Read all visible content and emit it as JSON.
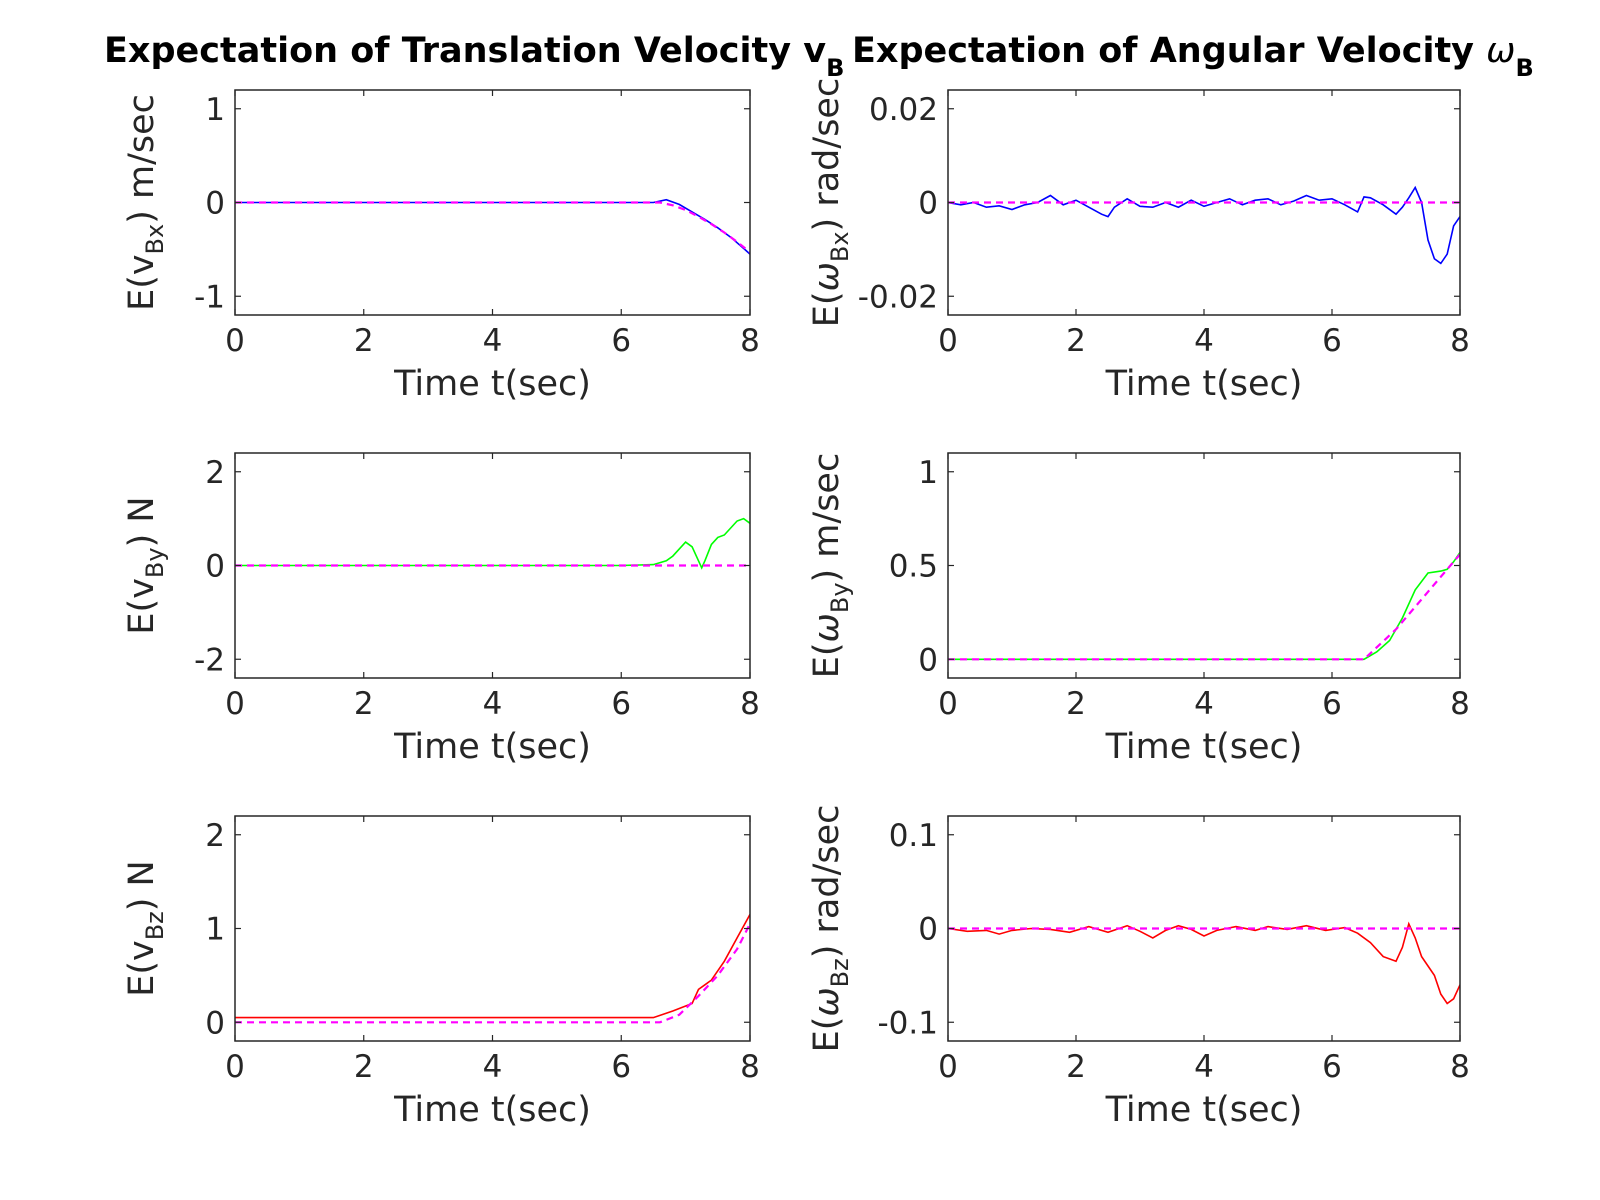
{
  "titles": {
    "left": {
      "main": "Expectation of Translation Velocity v",
      "sub": "B"
    },
    "right": {
      "main": "Expectation of Angular Velocity ",
      "greek": "ω",
      "sub": "B"
    }
  },
  "chart_data": [
    {
      "type": "line",
      "xlabel": "Time t(sec)",
      "ylabel": {
        "pre": "E(v",
        "sub": "Bx",
        "post": ") m/sec"
      },
      "xlim": [
        0,
        8
      ],
      "ylim": [
        -1.2,
        1.2
      ],
      "xticks": [
        "0",
        "2",
        "4",
        "6",
        "8"
      ],
      "xtick_values": [
        0,
        2,
        4,
        6,
        8
      ],
      "yticks": [
        "-1",
        "0",
        "1"
      ],
      "ytick_values": [
        -1,
        0,
        1
      ],
      "grid": false,
      "series": [
        {
          "color": "#0000ff",
          "dashed": false,
          "x": [
            0,
            1,
            2,
            3,
            4,
            5,
            6,
            6.5,
            6.7,
            6.9,
            7.1,
            7.3,
            7.5,
            7.7,
            7.9,
            8
          ],
          "y": [
            0,
            0,
            0,
            0,
            0,
            0,
            0,
            0,
            0.03,
            -0.02,
            -0.1,
            -0.18,
            -0.27,
            -0.37,
            -0.49,
            -0.55
          ]
        },
        {
          "color": "#ff00ff",
          "dashed": true,
          "x": [
            0,
            1,
            2,
            3,
            4,
            5,
            6,
            6.6,
            6.8,
            7,
            7.2,
            7.4,
            7.6,
            7.8,
            8
          ],
          "y": [
            0,
            0,
            0,
            0,
            0,
            0,
            0,
            0,
            -0.03,
            -0.08,
            -0.15,
            -0.23,
            -0.32,
            -0.42,
            -0.53
          ]
        }
      ]
    },
    {
      "type": "line",
      "xlabel": "Time t(sec)",
      "ylabel": {
        "pre": "E(",
        "greek": "ω",
        "sub": "Bx",
        "post": ") rad/sec"
      },
      "xlim": [
        0,
        8
      ],
      "ylim": [
        -0.024,
        0.024
      ],
      "xticks": [
        "0",
        "2",
        "4",
        "6",
        "8"
      ],
      "xtick_values": [
        0,
        2,
        4,
        6,
        8
      ],
      "yticks": [
        "-0.02",
        "0",
        "0.02"
      ],
      "ytick_values": [
        -0.02,
        0,
        0.02
      ],
      "grid": false,
      "series": [
        {
          "color": "#0000ff",
          "dashed": false,
          "x": [
            0,
            0.2,
            0.4,
            0.6,
            0.8,
            1.0,
            1.2,
            1.4,
            1.6,
            1.8,
            2.0,
            2.2,
            2.4,
            2.5,
            2.6,
            2.8,
            3.0,
            3.2,
            3.4,
            3.6,
            3.8,
            4.0,
            4.2,
            4.4,
            4.6,
            4.8,
            5.0,
            5.2,
            5.4,
            5.6,
            5.8,
            6.0,
            6.2,
            6.4,
            6.5,
            6.6,
            6.8,
            7.0,
            7.1,
            7.2,
            7.3,
            7.4,
            7.5,
            7.6,
            7.7,
            7.8,
            7.9,
            8.0
          ],
          "y": [
            0,
            -0.0005,
            0,
            -0.001,
            -0.0007,
            -0.0015,
            -0.0005,
            0,
            0.0015,
            -0.0005,
            0.0005,
            -0.001,
            -0.0025,
            -0.003,
            -0.001,
            0.0008,
            -0.0008,
            -0.001,
            0,
            -0.001,
            0.0005,
            -0.0008,
            0,
            0.0008,
            -0.0005,
            0.0005,
            0.0008,
            -0.0005,
            0.0003,
            0.0015,
            0.0005,
            0.0008,
            -0.0005,
            -0.002,
            0.0012,
            0.001,
            -0.0005,
            -0.0025,
            -0.001,
            0.001,
            0.0032,
            0,
            -0.008,
            -0.012,
            -0.013,
            -0.011,
            -0.005,
            -0.003
          ]
        },
        {
          "color": "#ff00ff",
          "dashed": true,
          "x": [
            0,
            8
          ],
          "y": [
            0,
            0
          ]
        }
      ]
    },
    {
      "type": "line",
      "xlabel": "Time t(sec)",
      "ylabel": {
        "pre": "E(v",
        "sub": "By",
        "post": ") N"
      },
      "xlim": [
        0,
        8
      ],
      "ylim": [
        -2.4,
        2.4
      ],
      "xticks": [
        "0",
        "2",
        "4",
        "6",
        "8"
      ],
      "xtick_values": [
        0,
        2,
        4,
        6,
        8
      ],
      "yticks": [
        "-2",
        "0",
        "2"
      ],
      "ytick_values": [
        -2,
        0,
        2
      ],
      "grid": false,
      "series": [
        {
          "color": "#00ff00",
          "dashed": false,
          "x": [
            0,
            1,
            2,
            3,
            4,
            5,
            6,
            6.5,
            6.7,
            6.8,
            6.9,
            7.0,
            7.1,
            7.2,
            7.25,
            7.3,
            7.4,
            7.5,
            7.6,
            7.7,
            7.8,
            7.9,
            8.0
          ],
          "y": [
            0,
            0,
            0,
            0,
            0,
            0,
            0,
            0.02,
            0.1,
            0.2,
            0.35,
            0.5,
            0.4,
            0.1,
            -0.05,
            0.1,
            0.45,
            0.6,
            0.65,
            0.8,
            0.95,
            1.0,
            0.9
          ]
        },
        {
          "color": "#ff00ff",
          "dashed": true,
          "x": [
            0,
            8
          ],
          "y": [
            0,
            0
          ]
        }
      ]
    },
    {
      "type": "line",
      "xlabel": "Time t(sec)",
      "ylabel": {
        "pre": "E(",
        "greek": "ω",
        "sub": "By",
        "post": ") m/sec"
      },
      "xlim": [
        0,
        8
      ],
      "ylim": [
        -0.1,
        1.1
      ],
      "xticks": [
        "0",
        "2",
        "4",
        "6",
        "8"
      ],
      "xtick_values": [
        0,
        2,
        4,
        6,
        8
      ],
      "yticks": [
        "0",
        "0.5",
        "1"
      ],
      "ytick_values": [
        0,
        0.5,
        1
      ],
      "grid": false,
      "series": [
        {
          "color": "#00ff00",
          "dashed": false,
          "x": [
            0,
            1,
            2,
            3,
            4,
            5,
            6,
            6.5,
            6.7,
            6.9,
            7.1,
            7.3,
            7.5,
            7.7,
            7.8,
            7.9,
            8.0
          ],
          "y": [
            0,
            0,
            0,
            0,
            0,
            0,
            0,
            0,
            0.04,
            0.1,
            0.22,
            0.37,
            0.46,
            0.47,
            0.48,
            0.52,
            0.57
          ]
        },
        {
          "color": "#ff00ff",
          "dashed": true,
          "x": [
            0,
            1,
            2,
            3,
            4,
            5,
            6,
            6.5,
            7,
            7.5,
            8
          ],
          "y": [
            0,
            0,
            0,
            0,
            0,
            0,
            0,
            0,
            0.16,
            0.36,
            0.56
          ]
        }
      ]
    },
    {
      "type": "line",
      "xlabel": "Time t(sec)",
      "ylabel": {
        "pre": "E(v",
        "sub": "Bz",
        "post": ") N"
      },
      "xlim": [
        0,
        8
      ],
      "ylim": [
        -0.2,
        2.2
      ],
      "xticks": [
        "0",
        "2",
        "4",
        "6",
        "8"
      ],
      "xtick_values": [
        0,
        2,
        4,
        6,
        8
      ],
      "yticks": [
        "0",
        "1",
        "2"
      ],
      "ytick_values": [
        0,
        1,
        2
      ],
      "grid": false,
      "series": [
        {
          "color": "#ff0000",
          "dashed": false,
          "x": [
            0,
            1,
            2,
            3,
            4,
            5,
            6,
            6.5,
            6.8,
            7.1,
            7.2,
            7.3,
            7.4,
            7.6,
            7.8,
            8.0
          ],
          "y": [
            0.05,
            0.05,
            0.05,
            0.05,
            0.05,
            0.05,
            0.05,
            0.05,
            0.12,
            0.2,
            0.35,
            0.4,
            0.45,
            0.65,
            0.9,
            1.15
          ]
        },
        {
          "color": "#ff00ff",
          "dashed": true,
          "x": [
            0,
            1,
            2,
            3,
            4,
            5,
            6,
            6.6,
            6.9,
            7.2,
            7.5,
            7.8,
            8.0
          ],
          "y": [
            0,
            0,
            0,
            0,
            0,
            0,
            0,
            0,
            0.08,
            0.28,
            0.5,
            0.78,
            1.05
          ]
        }
      ]
    },
    {
      "type": "line",
      "xlabel": "Time t(sec)",
      "ylabel": {
        "pre": "E(",
        "greek": "ω",
        "sub": "Bz",
        "post": ") rad/sec"
      },
      "xlim": [
        0,
        8
      ],
      "ylim": [
        -0.12,
        0.12
      ],
      "xticks": [
        "0",
        "2",
        "4",
        "6",
        "8"
      ],
      "xtick_values": [
        0,
        2,
        4,
        6,
        8
      ],
      "yticks": [
        "-0.1",
        "0",
        "0.1"
      ],
      "ytick_values": [
        -0.1,
        0,
        0.1
      ],
      "grid": false,
      "series": [
        {
          "color": "#ff0000",
          "dashed": false,
          "x": [
            0,
            0.3,
            0.6,
            0.8,
            1.0,
            1.3,
            1.6,
            1.9,
            2.2,
            2.5,
            2.8,
            3.0,
            3.2,
            3.4,
            3.6,
            3.8,
            4.0,
            4.2,
            4.5,
            4.8,
            5.0,
            5.3,
            5.6,
            5.9,
            6.2,
            6.4,
            6.6,
            6.8,
            7.0,
            7.1,
            7.2,
            7.3,
            7.4,
            7.5,
            7.6,
            7.7,
            7.8,
            7.9,
            8.0
          ],
          "y": [
            0,
            -0.003,
            -0.002,
            -0.006,
            -0.002,
            0,
            -0.001,
            -0.004,
            0.002,
            -0.004,
            0.003,
            -0.003,
            -0.01,
            -0.002,
            0.003,
            -0.001,
            -0.008,
            -0.002,
            0.002,
            -0.002,
            0.002,
            -0.001,
            0.003,
            -0.002,
            0.001,
            -0.005,
            -0.015,
            -0.03,
            -0.035,
            -0.02,
            0.005,
            -0.01,
            -0.03,
            -0.04,
            -0.05,
            -0.07,
            -0.08,
            -0.075,
            -0.06
          ]
        },
        {
          "color": "#ff00ff",
          "dashed": true,
          "x": [
            0,
            8
          ],
          "y": [
            0,
            0
          ]
        }
      ]
    }
  ]
}
